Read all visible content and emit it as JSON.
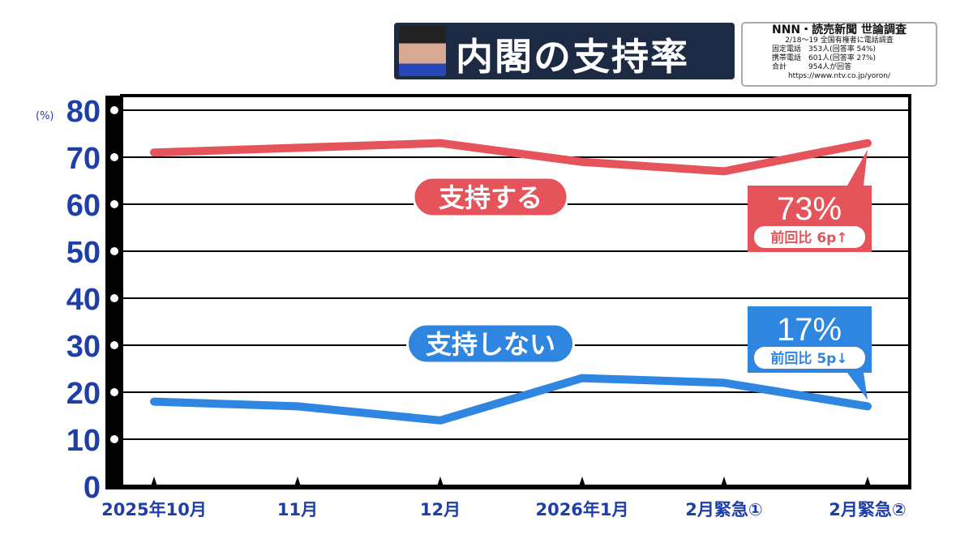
{
  "header": {
    "title": "内閣の支持率",
    "info": {
      "source": "NNN・読売新聞 世論調査",
      "line1": "2/18〜19 全国有権者に電話調査",
      "line2": "固定電話　353人(回答率 54%)",
      "line3": "携帯電話　601人(回答率 27%)",
      "line4": "合計　　　954人が回答",
      "url": "https://www.ntv.co.jp/yoron/"
    }
  },
  "chart_data": {
    "type": "line",
    "title": "内閣の支持率",
    "ylabel": "(%)",
    "ylim": [
      0,
      80
    ],
    "yticks": [
      "0",
      "10",
      "20",
      "30",
      "40",
      "50",
      "60",
      "70",
      "80"
    ],
    "categories": [
      "2025年10月",
      "11月",
      "12月",
      "2026年1月",
      "2月緊急①",
      "2月緊急②"
    ],
    "grid": true,
    "series": [
      {
        "name": "支持する",
        "color": "#e4545a",
        "values": [
          71,
          72,
          73,
          69,
          67,
          73
        ],
        "callout": {
          "value": "73%",
          "change": "前回比 6p↑"
        }
      },
      {
        "name": "支持しない",
        "color": "#2f86e0",
        "values": [
          18,
          17,
          14,
          23,
          22,
          17
        ],
        "callout": {
          "value": "17%",
          "change": "前回比 5p↓"
        }
      }
    ]
  }
}
